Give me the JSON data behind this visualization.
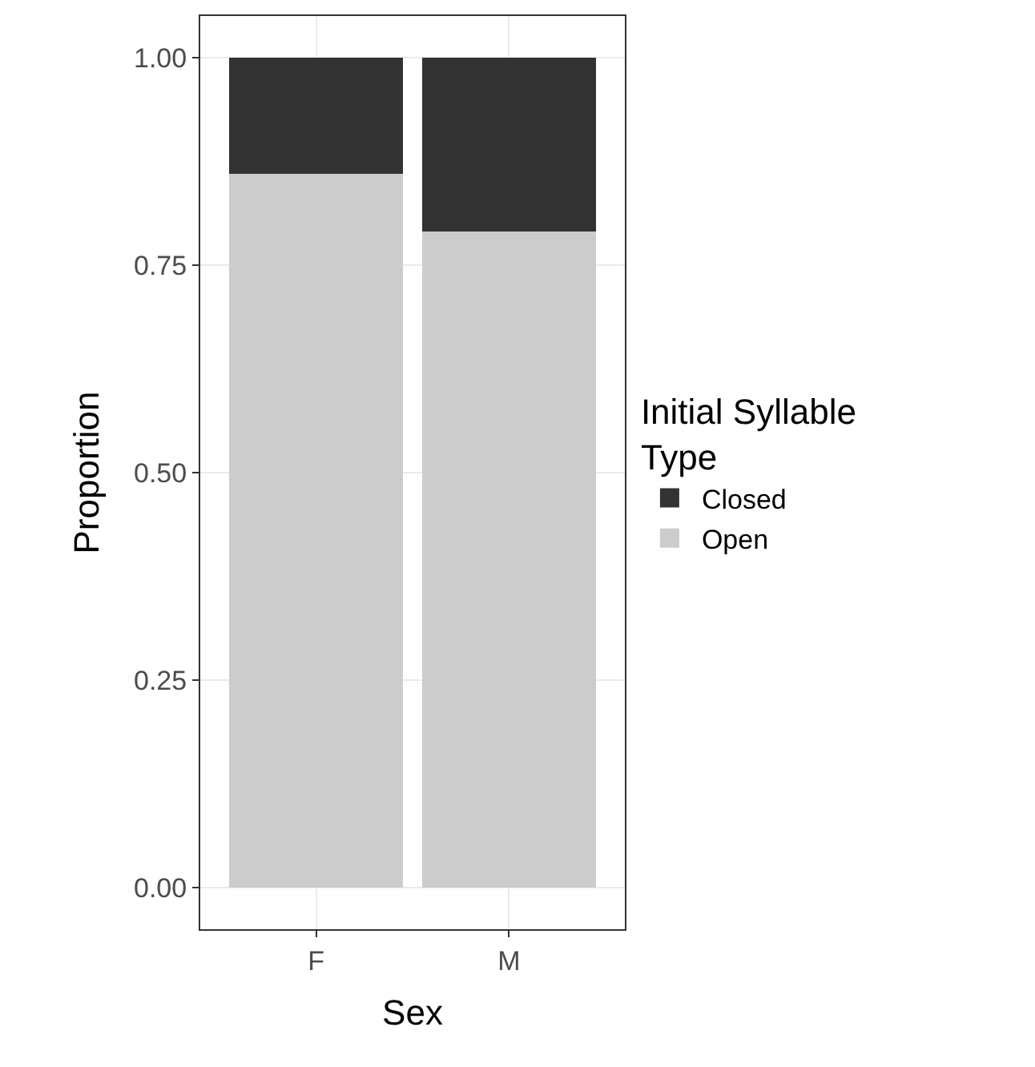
{
  "chart_data": {
    "type": "bar",
    "stacked": true,
    "xlabel": "Sex",
    "ylabel": "Proportion",
    "legend_title": "Initial Syllable Type",
    "categories": [
      "F",
      "M"
    ],
    "series": [
      {
        "name": "Open",
        "color": "#cccccc",
        "values": [
          0.86,
          0.79
        ]
      },
      {
        "name": "Closed",
        "color": "#333333",
        "values": [
          0.14,
          0.21
        ]
      }
    ],
    "ylim": [
      -0.05,
      1.05
    ],
    "yticks": [
      {
        "value": 0,
        "label": "0.00"
      },
      {
        "value": 0.25,
        "label": "0.25"
      },
      {
        "value": 0.5,
        "label": "0.50"
      },
      {
        "value": 0.75,
        "label": "0.75"
      },
      {
        "value": 1,
        "label": "1.00"
      }
    ],
    "grid": true,
    "legend": "right"
  }
}
